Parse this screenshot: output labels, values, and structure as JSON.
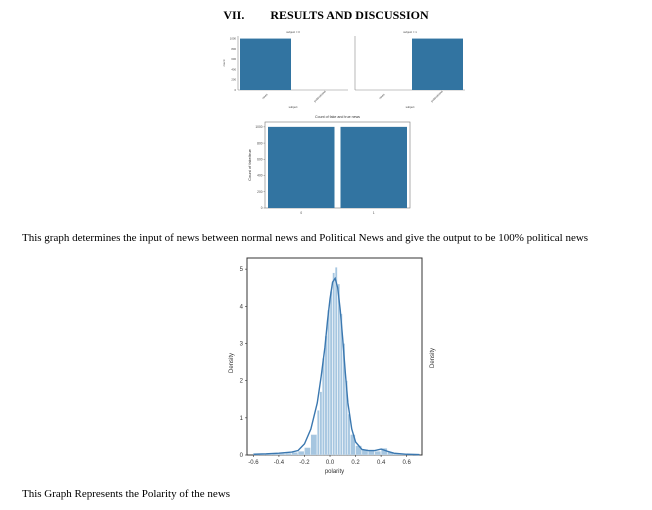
{
  "section": {
    "number": "VII.",
    "title": "RESULTS AND DISCUSSION"
  },
  "captions": {
    "first": "This graph determines the input of news between normal news and Political News and give the output to be 100% political news",
    "second": "This Graph Represents the Polarity of the news"
  },
  "colors": {
    "bar": "#3274a1",
    "density_fill": "#a6c6e0",
    "density_line": "#3b78b0"
  },
  "chart_data": [
    {
      "id": "subject-facet",
      "type": "bar",
      "panels": [
        {
          "title": "subject = 0",
          "categories": [
            "news",
            "politicsNews"
          ],
          "values": [
            1000,
            0
          ]
        },
        {
          "title": "subject = 1",
          "categories": [
            "news",
            "politicsNews"
          ],
          "values": [
            0,
            1000
          ]
        }
      ],
      "ylabel": "count",
      "xlabel": "subject",
      "yticks": [
        0,
        200,
        400,
        600,
        800,
        1000
      ],
      "ylim": [
        0,
        1050
      ]
    },
    {
      "id": "fake-true-count",
      "type": "bar",
      "title": "Count of fake and true news",
      "categories": [
        "0",
        "1"
      ],
      "values": [
        1000,
        1000
      ],
      "ylabel": "Count of fake/true",
      "yticks": [
        0,
        200,
        400,
        600,
        800,
        1000
      ],
      "ylim": [
        0,
        1060
      ]
    },
    {
      "id": "polarity-density",
      "type": "area",
      "xlabel": "polarity",
      "ylabel": "Density",
      "right_label": "Density",
      "xlim": [
        -0.65,
        0.72
      ],
      "ylim": [
        0,
        5.3
      ],
      "xticks": [
        -0.6,
        -0.4,
        -0.2,
        0.0,
        0.2,
        0.4,
        0.6
      ],
      "xtick_labels": [
        "-0.6",
        "-0.4",
        "-0.2",
        "0.0",
        "0.2",
        "0.4",
        "0.6"
      ],
      "yticks": [
        0,
        1,
        2,
        3,
        4,
        5
      ],
      "histogram": {
        "bin_edges": [
          -0.6,
          -0.55,
          -0.5,
          -0.45,
          -0.4,
          -0.35,
          -0.3,
          -0.25,
          -0.2,
          -0.15,
          -0.1,
          -0.08,
          -0.06,
          -0.04,
          -0.02,
          0.0,
          0.02,
          0.04,
          0.06,
          0.08,
          0.1,
          0.12,
          0.14,
          0.16,
          0.2,
          0.25,
          0.3,
          0.35,
          0.4,
          0.45,
          0.5,
          0.55,
          0.6,
          0.65
        ],
        "densities": [
          0.02,
          0.01,
          0.02,
          0.03,
          0.04,
          0.05,
          0.07,
          0.1,
          0.2,
          0.55,
          1.2,
          1.7,
          2.6,
          3.2,
          3.9,
          4.4,
          4.9,
          5.05,
          4.6,
          3.8,
          3.0,
          2.0,
          1.1,
          0.55,
          0.25,
          0.15,
          0.12,
          0.1,
          0.18,
          0.08,
          0.05,
          0.03,
          0.02
        ]
      },
      "kde": {
        "x": [
          -0.6,
          -0.5,
          -0.4,
          -0.3,
          -0.25,
          -0.2,
          -0.15,
          -0.1,
          -0.07,
          -0.04,
          -0.02,
          0.0,
          0.02,
          0.04,
          0.06,
          0.08,
          0.1,
          0.12,
          0.14,
          0.17,
          0.2,
          0.25,
          0.3,
          0.35,
          0.4,
          0.45,
          0.5,
          0.6,
          0.7
        ],
        "y": [
          0.02,
          0.03,
          0.05,
          0.08,
          0.12,
          0.3,
          0.7,
          1.4,
          2.1,
          2.9,
          3.6,
          4.2,
          4.65,
          4.75,
          4.5,
          3.9,
          3.1,
          2.2,
          1.4,
          0.7,
          0.35,
          0.15,
          0.12,
          0.12,
          0.16,
          0.1,
          0.05,
          0.02,
          0.01
        ]
      }
    }
  ]
}
